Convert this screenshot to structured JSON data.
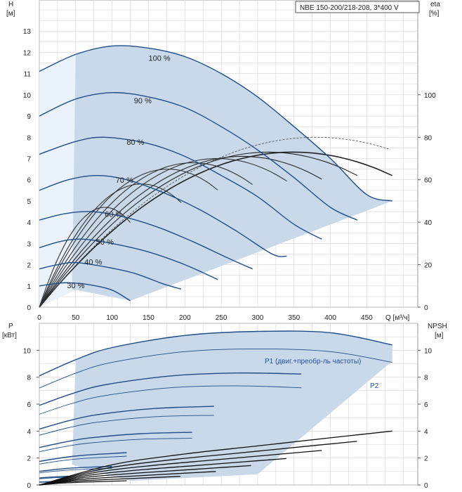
{
  "chart_data": [
    {
      "type": "line",
      "title": "NBE 150-200/218-208, 3*400 V",
      "xlabel": "Q [м³/ч]",
      "ylabel_left": "H\n[м]",
      "ylabel_right": "eta\n[%]",
      "xlim": [
        0,
        520
      ],
      "ylim": [
        0,
        14
      ],
      "ylim_right": [
        0,
        140
      ],
      "x_ticks": [
        0,
        50,
        100,
        150,
        200,
        250,
        300,
        350,
        400,
        450
      ],
      "y_ticks": [
        0,
        1,
        2,
        3,
        4,
        5,
        6,
        7,
        8,
        9,
        10,
        11,
        12,
        13
      ],
      "y_right_ticks": [
        0,
        20,
        40,
        60,
        80,
        100
      ],
      "grid": true,
      "series": [
        {
          "name": "100 %",
          "values": [
            [
              0,
              11.1
            ],
            [
              50,
              11.9
            ],
            [
              100,
              12.3
            ],
            [
              150,
              12.2
            ],
            [
              200,
              11.8
            ],
            [
              250,
              11.0
            ],
            [
              300,
              9.9
            ],
            [
              350,
              8.5
            ],
            [
              400,
              7.0
            ],
            [
              450,
              5.3
            ],
            [
              485,
              5.0
            ]
          ]
        },
        {
          "name": "90 %",
          "values": [
            [
              0,
              9.0
            ],
            [
              50,
              9.8
            ],
            [
              100,
              10.1
            ],
            [
              150,
              9.9
            ],
            [
              200,
              9.4
            ],
            [
              250,
              8.5
            ],
            [
              300,
              7.4
            ],
            [
              350,
              6.1
            ],
            [
              400,
              4.7
            ],
            [
              437,
              4.1
            ]
          ]
        },
        {
          "name": "80 %",
          "values": [
            [
              0,
              7.2
            ],
            [
              50,
              7.8
            ],
            [
              90,
              8.0
            ],
            [
              150,
              7.7
            ],
            [
              200,
              7.1
            ],
            [
              250,
              6.2
            ],
            [
              300,
              5.2
            ],
            [
              350,
              3.9
            ],
            [
              388,
              3.2
            ]
          ]
        },
        {
          "name": "70 %",
          "values": [
            [
              0,
              5.5
            ],
            [
              40,
              6.0
            ],
            [
              80,
              6.2
            ],
            [
              120,
              6.0
            ],
            [
              170,
              5.4
            ],
            [
              220,
              4.6
            ],
            [
              270,
              3.6
            ],
            [
              320,
              2.5
            ],
            [
              340,
              2.4
            ]
          ]
        },
        {
          "name": "60 %",
          "values": [
            [
              0,
              4.1
            ],
            [
              35,
              4.4
            ],
            [
              70,
              4.5
            ],
            [
              110,
              4.3
            ],
            [
              160,
              3.8
            ],
            [
              210,
              3.1
            ],
            [
              260,
              2.3
            ],
            [
              293,
              1.8
            ]
          ]
        },
        {
          "name": "50 %",
          "values": [
            [
              0,
              2.8
            ],
            [
              30,
              3.1
            ],
            [
              60,
              3.2
            ],
            [
              100,
              3.0
            ],
            [
              150,
              2.6
            ],
            [
              200,
              2.0
            ],
            [
              245,
              1.3
            ]
          ]
        },
        {
          "name": "40 %",
          "values": [
            [
              0,
              1.8
            ],
            [
              25,
              2.0
            ],
            [
              50,
              2.1
            ],
            [
              90,
              1.9
            ],
            [
              130,
              1.6
            ],
            [
              170,
              1.1
            ],
            [
              195,
              0.85
            ]
          ]
        },
        {
          "name": "30 %",
          "values": [
            [
              0,
              1.0
            ],
            [
              20,
              1.1
            ],
            [
              40,
              1.15
            ],
            [
              70,
              1.05
            ],
            [
              100,
              0.8
            ],
            [
              125,
              0.3
            ]
          ]
        }
      ],
      "efficiency_max_percent": [
        {
          "speed": "100 %",
          "eta": 73
        },
        {
          "speed": "90 %",
          "eta": 73
        },
        {
          "speed": "80 %",
          "eta": 71
        },
        {
          "speed": "70 %",
          "eta": 70
        },
        {
          "speed": "60 %",
          "eta": 68
        },
        {
          "speed": "50 %",
          "eta": 65
        },
        {
          "speed": "40 %",
          "eta": 58
        },
        {
          "speed": "30 %",
          "eta": 47
        }
      ],
      "labels": [
        "100 %",
        "90 %",
        "80 %",
        "70 %",
        "60 %",
        "50 %",
        "40 %",
        "30 %"
      ]
    },
    {
      "type": "line",
      "xlabel": "",
      "ylabel_left": "P\n[кВт]",
      "ylabel_right": "NPSH\n[м]",
      "xlim": [
        0,
        520
      ],
      "ylim": [
        0,
        12
      ],
      "y_ticks": [
        0,
        2,
        4,
        6,
        8,
        10
      ],
      "y_right_ticks": [
        0,
        2,
        4,
        6,
        8,
        10
      ],
      "grid": true,
      "legend_labels": [
        "P1 (двиг.+преобр-ль частоты)",
        "P2"
      ],
      "series": [
        {
          "name": "P1 (двиг.+преобр-ль частоты)",
          "values": [
            [
              0,
              8.1
            ],
            [
              50,
              9.3
            ],
            [
              100,
              10.2
            ],
            [
              200,
              11.1
            ],
            [
              300,
              11.4
            ],
            [
              400,
              11.3
            ],
            [
              485,
              10.4
            ]
          ]
        },
        {
          "name": "P2",
          "values": [
            [
              0,
              7.2
            ],
            [
              50,
              8.3
            ],
            [
              100,
              9.1
            ],
            [
              200,
              9.9
            ],
            [
              300,
              10.1
            ],
            [
              400,
              9.9
            ],
            [
              485,
              9.1
            ]
          ]
        }
      ],
      "npsh": {
        "values": [
          [
            0,
            0.0
          ],
          [
            100,
            1.5
          ],
          [
            200,
            2.3
          ],
          [
            300,
            2.9
          ],
          [
            400,
            3.5
          ],
          [
            485,
            4.0
          ]
        ]
      }
    }
  ]
}
